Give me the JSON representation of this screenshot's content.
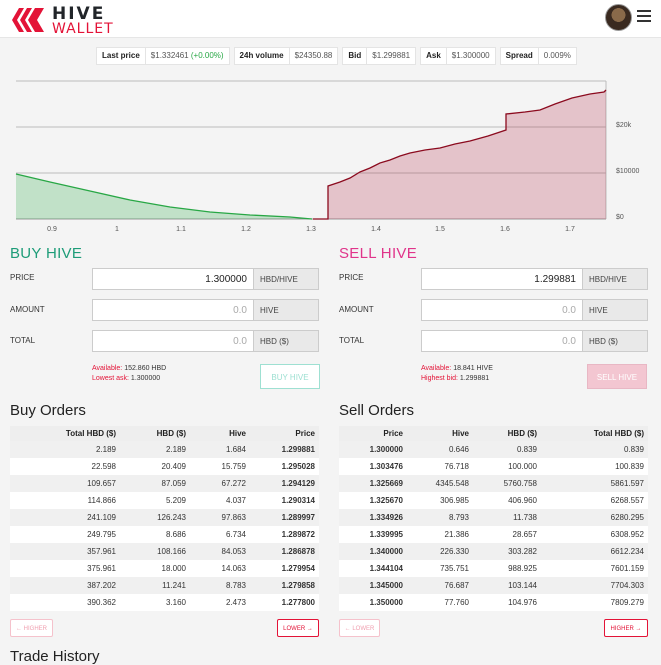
{
  "header": {
    "logo_top": "HIVE",
    "logo_bottom": "WALLET"
  },
  "ticker": [
    {
      "label": "Last price",
      "value": "$1.332461",
      "extra": "(+0.00%)"
    },
    {
      "label": "24h volume",
      "value": "$24350.88"
    },
    {
      "label": "Bid",
      "value": "$1.299881"
    },
    {
      "label": "Ask",
      "value": "$1.300000"
    },
    {
      "label": "Spread",
      "value": "0.009%"
    }
  ],
  "depth_chart": {
    "x_ticks": [
      "0.9",
      "1",
      "1.1",
      "1.2",
      "1.3",
      "1.4",
      "1.5",
      "1.6",
      "1.7"
    ],
    "y_ticks": [
      "$20k",
      "$10000",
      "$0"
    ],
    "bid_color": "#28a745",
    "ask_color": "#8b0a1e"
  },
  "buy": {
    "title": "BUY HIVE",
    "price_label": "PRICE",
    "price_value": "1.300000",
    "price_unit": "HBD/HIVE",
    "amount_label": "AMOUNT",
    "amount_placeholder": "0.0",
    "amount_unit": "HIVE",
    "total_label": "TOTAL",
    "total_placeholder": "0.0",
    "total_unit": "HBD ($)",
    "available_label": "Available:",
    "available_value": "152.860 HBD",
    "best_label": "Lowest ask:",
    "best_value": "1.300000",
    "button": "BUY HIVE"
  },
  "sell": {
    "title": "SELL HIVE",
    "price_label": "PRICE",
    "price_value": "1.299881",
    "price_unit": "HBD/HIVE",
    "amount_label": "AMOUNT",
    "amount_placeholder": "0.0",
    "amount_unit": "HIVE",
    "total_label": "TOTAL",
    "total_placeholder": "0.0",
    "total_unit": "HBD ($)",
    "available_label": "Available:",
    "available_value": "18.841 HIVE",
    "best_label": "Highest bid:",
    "best_value": "1.299881",
    "button": "SELL HIVE"
  },
  "buy_orders": {
    "title": "Buy Orders",
    "headers": [
      "Total HBD ($)",
      "HBD ($)",
      "Hive",
      "Price"
    ],
    "rows": [
      [
        "2.189",
        "2.189",
        "1.684",
        "1.299881"
      ],
      [
        "22.598",
        "20.409",
        "15.759",
        "1.295028"
      ],
      [
        "109.657",
        "87.059",
        "67.272",
        "1.294129"
      ],
      [
        "114.866",
        "5.209",
        "4.037",
        "1.290314"
      ],
      [
        "241.109",
        "126.243",
        "97.863",
        "1.289997"
      ],
      [
        "249.795",
        "8.686",
        "6.734",
        "1.289872"
      ],
      [
        "357.961",
        "108.166",
        "84.053",
        "1.286878"
      ],
      [
        "375.961",
        "18.000",
        "14.063",
        "1.279954"
      ],
      [
        "387.202",
        "11.241",
        "8.783",
        "1.279858"
      ],
      [
        "390.362",
        "3.160",
        "2.473",
        "1.277800"
      ]
    ],
    "prev": "← HIGHER",
    "next": "LOWER →"
  },
  "sell_orders": {
    "title": "Sell Orders",
    "headers": [
      "Price",
      "Hive",
      "HBD ($)",
      "Total HBD ($)"
    ],
    "rows": [
      [
        "1.300000",
        "0.646",
        "0.839",
        "0.839"
      ],
      [
        "1.303476",
        "76.718",
        "100.000",
        "100.839"
      ],
      [
        "1.325669",
        "4345.548",
        "5760.758",
        "5861.597"
      ],
      [
        "1.325670",
        "306.985",
        "406.960",
        "6268.557"
      ],
      [
        "1.334926",
        "8.793",
        "11.738",
        "6280.295"
      ],
      [
        "1.339995",
        "21.386",
        "28.657",
        "6308.952"
      ],
      [
        "1.340000",
        "226.330",
        "303.282",
        "6612.234"
      ],
      [
        "1.344104",
        "735.751",
        "988.925",
        "7601.159"
      ],
      [
        "1.345000",
        "76.687",
        "103.144",
        "7704.303"
      ],
      [
        "1.350000",
        "77.760",
        "104.976",
        "7809.279"
      ]
    ],
    "prev": "← LOWER",
    "next": "HIGHER →"
  },
  "trade_history": {
    "title": "Trade History"
  }
}
